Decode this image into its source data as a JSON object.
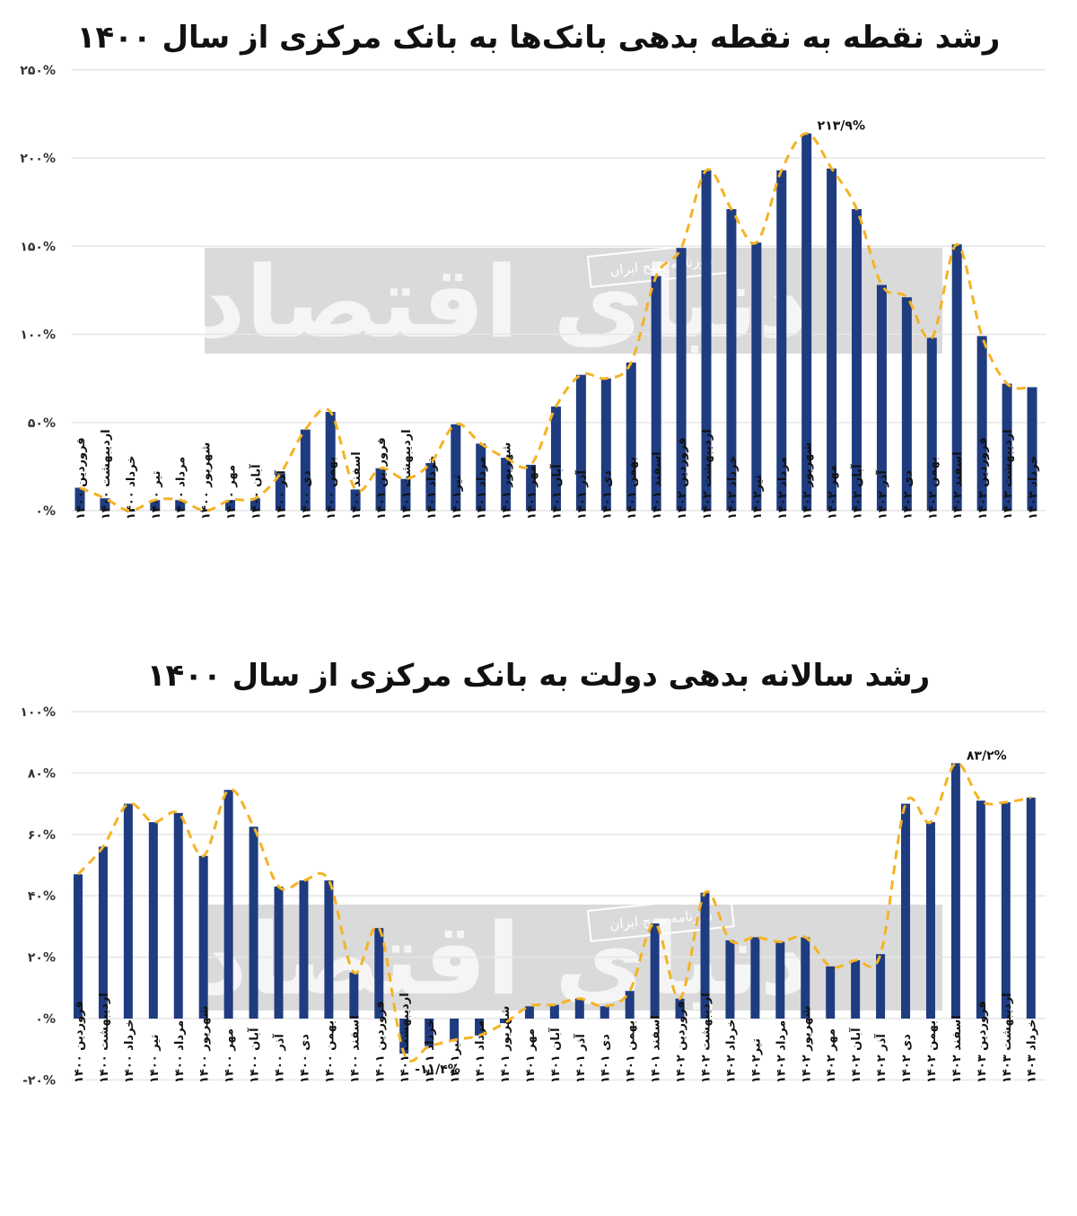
{
  "colors": {
    "bar": "#1f3c80",
    "trend": "#f5b324",
    "grid": "#e6e6e6",
    "watermark_band": "#d4d4d4",
    "text": "#111111"
  },
  "watermark": {
    "main": "دنیای اقتصاد",
    "badge": "روزنامه صبح ایران"
  },
  "categories": [
    "فروردین ۱۴۰۰",
    "اردیبهشت ۱۴۰۰",
    "خرداد ۱۴۰۰",
    "تیر ۱۴۰۰",
    "مرداد ۱۴۰۰",
    "شهریور ۱۴۰۰",
    "مهر ۱۴۰۰",
    "آبان ۱۴۰۰",
    "آذر ۱۴۰۰",
    "دی ۱۴۰۰",
    "بهمن ۱۴۰۰",
    "اسفند ۱۴۰۰",
    "فروردین ۱۴۰۱",
    "اردیبهشت ۱۴۰۱",
    "خرداد ۱۴۰۱",
    "تیر۱۴۰۱",
    "مرداد ۱۴۰۱",
    "شهریور ۱۴۰۱",
    "مهر ۱۴۰۱",
    "آبان ۱۴۰۱",
    "آذر ۱۴۰۱",
    "دی ۱۴۰۱",
    "بهمن ۱۴۰۱",
    "اسفند ۱۴۰۱",
    "فروردین ۱۴۰۲",
    "اردیبهشت ۱۴۰۲",
    "خرداد ۱۴۰۲",
    "تیر۱۴۰۲",
    "مرداد ۱۴۰۲",
    "شهریور ۱۴۰۲",
    "مهر ۱۴۰۲",
    "آبان ۱۴۰۲",
    "آذر ۱۴۰۲",
    "دی ۱۴۰۲",
    "بهمن ۱۴۰۲",
    "اسفند ۱۴۰۲",
    "فروردین ۱۴۰۳",
    "اردیبهشت ۱۴۰۳",
    "خرداد ۱۴۰۳"
  ],
  "chart_data": [
    {
      "type": "bar",
      "title": "رشد نقطه به نقطه بدهی بانک‌ها به بانک مرکزی از سال ۱۴۰۰",
      "xlabel": "",
      "ylabel": "",
      "ylim": [
        0,
        250
      ],
      "yticks": [
        0,
        50,
        100,
        150,
        200,
        250
      ],
      "ytick_labels": [
        "۰%",
        "۵۰%",
        "۱۰۰%",
        "۱۵۰%",
        "۲۰۰%",
        "۲۵۰%"
      ],
      "grid": true,
      "legend": null,
      "trendline": "dashed smoothed line through bar tops",
      "annotations": [
        {
          "index": 29,
          "text": "۲۱۳/۹%",
          "value": 213.9
        }
      ],
      "categories_ref": "categories",
      "values": [
        13,
        7,
        0,
        6,
        6,
        0,
        6,
        7,
        21,
        46,
        56,
        12,
        24,
        18,
        27,
        49,
        38,
        30,
        26,
        59,
        77,
        75,
        84,
        133,
        149,
        193,
        171,
        152,
        193,
        213.9,
        194,
        171,
        128,
        121,
        98,
        151,
        99,
        72,
        70
      ]
    },
    {
      "type": "bar",
      "title": "رشد سالانه بدهی دولت به بانک مرکزی از سال ۱۴۰۰",
      "xlabel": "",
      "ylabel": "",
      "ylim": [
        -20,
        100
      ],
      "yticks": [
        -20,
        0,
        20,
        40,
        60,
        80,
        100
      ],
      "ytick_labels": [
        "-۲۰%",
        "۰%",
        "۲۰%",
        "۴۰%",
        "۶۰%",
        "۸۰%",
        "۱۰۰%"
      ],
      "grid": true,
      "legend": null,
      "trendline": "dashed smoothed line through bar tops",
      "annotations": [
        {
          "index": 13,
          "text": "-۱۱/۴%",
          "value": -11.4
        },
        {
          "index": 35,
          "text": "۸۳/۲%",
          "value": 83.2
        }
      ],
      "categories_ref": "categories",
      "values": [
        47,
        56,
        70,
        64,
        67,
        53,
        74.5,
        62.5,
        43,
        45,
        45,
        15,
        29.5,
        -11.4,
        -9,
        -7,
        -5.5,
        -1.5,
        4,
        4.5,
        6.5,
        4,
        9,
        31,
        6.5,
        41,
        25.5,
        26.5,
        25,
        26.5,
        17,
        19,
        21,
        70,
        64,
        83.2,
        71,
        70.5,
        72
      ]
    }
  ]
}
